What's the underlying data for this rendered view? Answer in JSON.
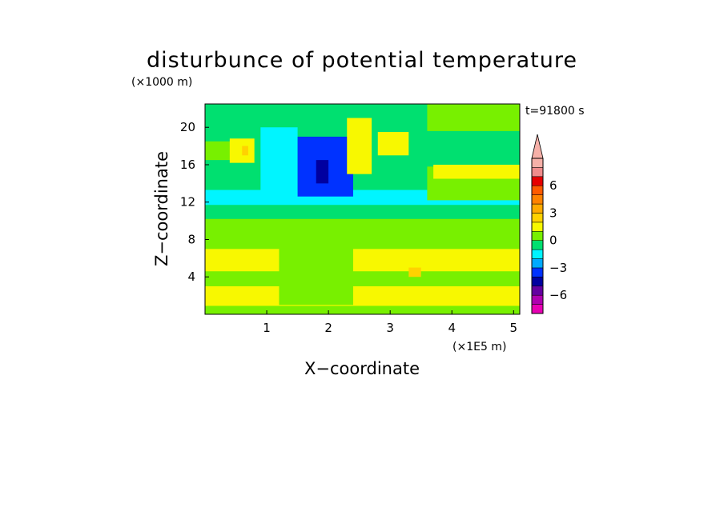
{
  "chart_data": {
    "type": "heatmap",
    "title": "disturbunce of potential temperature",
    "y_unit": "(×1000 m)",
    "x_unit": "(×1E5 m)",
    "xlabel": "X−coordinate",
    "ylabel": "Z−coordinate",
    "time_label": "t=91800 s",
    "xlim": [
      0,
      5.1
    ],
    "ylim": [
      0,
      22.5
    ],
    "x_ticks": [
      1,
      2,
      3,
      4,
      5
    ],
    "x_tick_labels": [
      "1",
      "2",
      "3",
      "4",
      "5"
    ],
    "y_ticks": [
      4,
      8,
      12,
      16,
      20
    ],
    "y_tick_labels": [
      "4",
      "8",
      "12",
      "16",
      "20"
    ],
    "colorbar": {
      "levels": [
        -8,
        -7,
        -6,
        -5,
        -4,
        -3,
        -2,
        -1,
        0,
        1,
        2,
        3,
        4,
        5,
        6,
        7,
        8
      ],
      "tick_values": [
        6,
        3,
        0,
        -3,
        -6
      ],
      "tick_labels": [
        "6",
        "3",
        "0",
        "−3",
        "−6"
      ],
      "colors": [
        "#e800b4",
        "#b000b0",
        "#6400a0",
        "#0000a0",
        "#0032ff",
        "#00aaff",
        "#00f5ff",
        "#00e070",
        "#78f000",
        "#f8f800",
        "#ffd200",
        "#ffaa00",
        "#ff8200",
        "#ff5a00",
        "#e60000",
        "#f08c8c",
        "#f6b0a8"
      ],
      "extend": "max"
    },
    "field_regions": [
      {
        "x": [
          0,
          5.1
        ],
        "z": [
          0,
          22.5
        ],
        "value": 0.5
      },
      {
        "x": [
          0,
          5.1
        ],
        "z": [
          10.2,
          22.5
        ],
        "value": -0.5
      },
      {
        "x": [
          0,
          5.1
        ],
        "z": [
          0.9,
          3.0
        ],
        "value": 1.5
      },
      {
        "x": [
          0,
          5.1
        ],
        "z": [
          4.6,
          7.0
        ],
        "value": 1.5
      },
      {
        "x": [
          0,
          5.1
        ],
        "z": [
          7.0,
          8.1
        ],
        "value": 0.5
      },
      {
        "x": [
          0,
          5.1
        ],
        "z": [
          11.7,
          13.3
        ],
        "value": -1.5
      },
      {
        "x": [
          3.6,
          5.1
        ],
        "z": [
          12.2,
          15.8
        ],
        "value": 0.5
      },
      {
        "x": [
          3.7,
          5.1
        ],
        "z": [
          14.5,
          16.0
        ],
        "value": 1.5
      },
      {
        "x": [
          3.6,
          5.1
        ],
        "z": [
          19.6,
          22.5
        ],
        "value": 0.5
      },
      {
        "x": [
          0,
          0.5
        ],
        "z": [
          16.5,
          18.5
        ],
        "value": 0.5
      },
      {
        "x": [
          0.4,
          0.8
        ],
        "z": [
          16.2,
          18.8
        ],
        "value": 1.5
      },
      {
        "x": [
          0.6,
          0.7
        ],
        "z": [
          17.0,
          18.0
        ],
        "value": 2.5
      },
      {
        "x": [
          0.9,
          1.5
        ],
        "z": [
          12.5,
          20.0
        ],
        "value": -1.5
      },
      {
        "x": [
          1.5,
          2.4
        ],
        "z": [
          12.6,
          19.0
        ],
        "value": -3.5
      },
      {
        "x": [
          1.8,
          2.0
        ],
        "z": [
          14.0,
          16.5
        ],
        "value": -4.5
      },
      {
        "x": [
          2.3,
          2.7
        ],
        "z": [
          15.0,
          21.0
        ],
        "value": 1.5
      },
      {
        "x": [
          2.8,
          3.3
        ],
        "z": [
          17.0,
          19.5
        ],
        "value": 1.5
      },
      {
        "x": [
          1.2,
          2.4
        ],
        "z": [
          1.0,
          7.5
        ],
        "value": 0.5
      },
      {
        "x": [
          3.3,
          3.5
        ],
        "z": [
          4.0,
          5.0
        ],
        "value": 2.5
      }
    ]
  }
}
